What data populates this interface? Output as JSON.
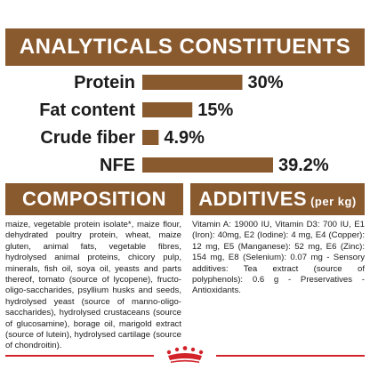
{
  "header": {
    "title": "ANALYTICALS CONSTITUENTS"
  },
  "chart_data": {
    "type": "bar",
    "orientation": "horizontal",
    "title": "ANALYTICALS CONSTITUENTS",
    "categories": [
      "Protein",
      "Fat content",
      "Crude fiber",
      "NFE"
    ],
    "values": [
      30,
      15,
      4.9,
      39.2
    ],
    "value_labels": [
      "30%",
      "15%",
      "4.9%",
      "39.2%"
    ],
    "unit": "%",
    "bar_color": "#8a5a2f"
  },
  "composition": {
    "title": "COMPOSITION",
    "text": "maize, vegetable protein isolate*, maize flour, dehydrated poultry protein, wheat, maize gluten, animal fats, vegetable fibres, hydrolysed animal proteins, chicory pulp, minerals, fish oil, soya oil, yeasts and parts thereof, tomato (source of lycopene), fructo-oligo-saccharides, psyllium husks and seeds, hydrolysed yeast (source of manno-oligo-saccharides), hydrolysed crustaceans (source of glucosamine), borage oil, marigold extract (source of lutein), hydrolysed cartilage (source of chondroitin)."
  },
  "additives": {
    "title": "ADDITIVES",
    "title_suffix": "(per kg)",
    "text": "Vitamin A: 19000 IU, Vitamin D3: 700 IU, E1 (Iron): 40mg, E2 (Iodine): 4 mg, E4 (Copper): 12 mg, E5 (Manganese): 52 mg, E6 (Zinc): 154 mg, E8 (Selenium): 0.07 mg - Sensory additives: Tea extract (source of polyphenols): 0.6 g - Preservatives - Antioxidants."
  },
  "brand": {
    "icon": "royal-canin-crown-icon",
    "accent": "#d2232a"
  },
  "colors": {
    "brown": "#8a5a2f",
    "text": "#1b1b1b"
  }
}
